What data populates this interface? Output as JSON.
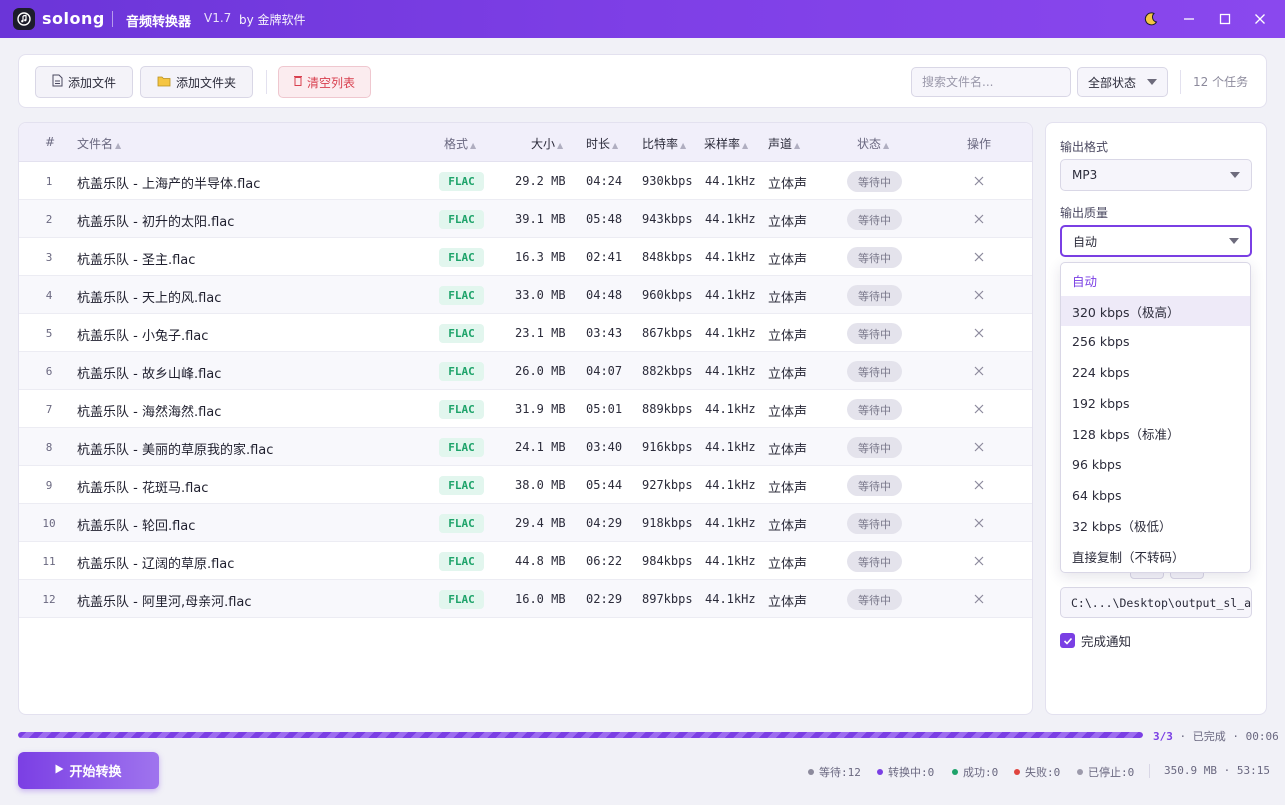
{
  "titlebar": {
    "brand": "solong",
    "title": "音频转换器",
    "version": "V1.7",
    "by": "by 金牌软件",
    "icons": [
      "music-note-icon",
      "moon-icon",
      "minimize-icon",
      "maximize-icon",
      "close-icon"
    ]
  },
  "toolbar": {
    "add_file": "添加文件",
    "add_folder": "添加文件夹",
    "clear_list": "清空列表",
    "search_placeholder": "搜索文件名...",
    "status_filter": "全部状态",
    "task_count": "12 个任务"
  },
  "table": {
    "headers": {
      "index": "#",
      "name": "文件名",
      "format": "格式",
      "size": "大小",
      "duration": "时长",
      "bitrate": "比特率",
      "samplerate": "采样率",
      "channels": "声道",
      "status": "状态",
      "action": "操作"
    },
    "rows": [
      {
        "idx": "1",
        "name": "杭盖乐队 - 上海产的半导体.flac",
        "fmt": "FLAC",
        "size": "29.2 MB",
        "dur": "04:24",
        "bit": "930kbps",
        "sr": "44.1kHz",
        "ch": "立体声",
        "status": "等待中"
      },
      {
        "idx": "2",
        "name": "杭盖乐队 - 初升的太阳.flac",
        "fmt": "FLAC",
        "size": "39.1 MB",
        "dur": "05:48",
        "bit": "943kbps",
        "sr": "44.1kHz",
        "ch": "立体声",
        "status": "等待中"
      },
      {
        "idx": "3",
        "name": "杭盖乐队 - 圣主.flac",
        "fmt": "FLAC",
        "size": "16.3 MB",
        "dur": "02:41",
        "bit": "848kbps",
        "sr": "44.1kHz",
        "ch": "立体声",
        "status": "等待中"
      },
      {
        "idx": "4",
        "name": "杭盖乐队 - 天上的风.flac",
        "fmt": "FLAC",
        "size": "33.0 MB",
        "dur": "04:48",
        "bit": "960kbps",
        "sr": "44.1kHz",
        "ch": "立体声",
        "status": "等待中"
      },
      {
        "idx": "5",
        "name": "杭盖乐队 - 小兔子.flac",
        "fmt": "FLAC",
        "size": "23.1 MB",
        "dur": "03:43",
        "bit": "867kbps",
        "sr": "44.1kHz",
        "ch": "立体声",
        "status": "等待中"
      },
      {
        "idx": "6",
        "name": "杭盖乐队 - 故乡山峰.flac",
        "fmt": "FLAC",
        "size": "26.0 MB",
        "dur": "04:07",
        "bit": "882kbps",
        "sr": "44.1kHz",
        "ch": "立体声",
        "status": "等待中"
      },
      {
        "idx": "7",
        "name": "杭盖乐队 - 海然海然.flac",
        "fmt": "FLAC",
        "size": "31.9 MB",
        "dur": "05:01",
        "bit": "889kbps",
        "sr": "44.1kHz",
        "ch": "立体声",
        "status": "等待中"
      },
      {
        "idx": "8",
        "name": "杭盖乐队 - 美丽的草原我的家.flac",
        "fmt": "FLAC",
        "size": "24.1 MB",
        "dur": "03:40",
        "bit": "916kbps",
        "sr": "44.1kHz",
        "ch": "立体声",
        "status": "等待中"
      },
      {
        "idx": "9",
        "name": "杭盖乐队 - 花斑马.flac",
        "fmt": "FLAC",
        "size": "38.0 MB",
        "dur": "05:44",
        "bit": "927kbps",
        "sr": "44.1kHz",
        "ch": "立体声",
        "status": "等待中"
      },
      {
        "idx": "10",
        "name": "杭盖乐队 - 轮回.flac",
        "fmt": "FLAC",
        "size": "29.4 MB",
        "dur": "04:29",
        "bit": "918kbps",
        "sr": "44.1kHz",
        "ch": "立体声",
        "status": "等待中"
      },
      {
        "idx": "11",
        "name": "杭盖乐队 - 辽阔的草原.flac",
        "fmt": "FLAC",
        "size": "44.8 MB",
        "dur": "06:22",
        "bit": "984kbps",
        "sr": "44.1kHz",
        "ch": "立体声",
        "status": "等待中"
      },
      {
        "idx": "12",
        "name": "杭盖乐队 - 阿里河,母亲河.flac",
        "fmt": "FLAC",
        "size": "16.0 MB",
        "dur": "02:29",
        "bit": "897kbps",
        "sr": "44.1kHz",
        "ch": "立体声",
        "status": "等待中"
      }
    ]
  },
  "settings": {
    "format_label": "输出格式",
    "format_value": "MP3",
    "quality_label": "输出质量",
    "quality_value": "自动",
    "quality_options": [
      "自动",
      "320 kbps（极高）",
      "256 kbps",
      "224 kbps",
      "192 kbps",
      "128 kbps（标准）",
      "96 kbps",
      "64 kbps",
      "32 kbps（极低）",
      "直接复制（不转码）"
    ],
    "selected_option_index": 0,
    "hovered_option_index": 1,
    "output_path": "C:\\...\\Desktop\\output_sl_ac",
    "notify_label": "完成通知",
    "notify_checked": true
  },
  "progress": {
    "fraction": 1.0,
    "count": "3/3",
    "status": "· 已完成 ·",
    "time": "00:06"
  },
  "footer": {
    "start_button": "开始转换",
    "waiting": "等待:12",
    "converting": "转换中:0",
    "success": "成功:0",
    "failed": "失败:0",
    "stopped": "已停止:0",
    "totals": "350.9 MB · 53:15"
  },
  "colors": {
    "accent": "#7a3fe4",
    "success": "#1ea36a",
    "danger": "#d8404f",
    "waiting_dot": "#8c8a9c",
    "converting_dot": "#7a3fe4",
    "success_dot": "#1ea36a",
    "failed_dot": "#e0453f",
    "stopped_dot": "#9c9aab"
  }
}
